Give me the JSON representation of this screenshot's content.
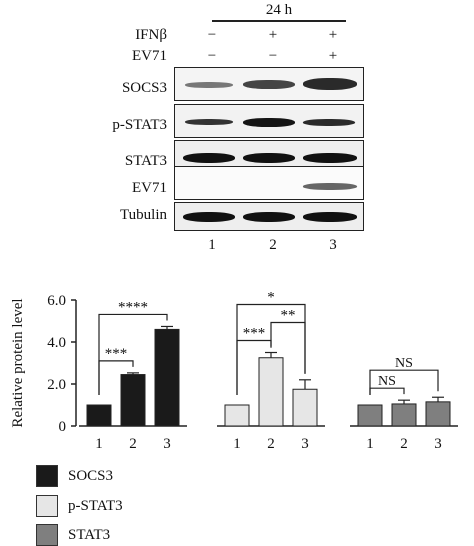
{
  "blot": {
    "time_label": "24 h",
    "treatments": [
      {
        "name": "IFNβ",
        "signs": [
          "−",
          "+",
          "+"
        ]
      },
      {
        "name": "EV71",
        "signs": [
          "−",
          "−",
          "+"
        ]
      }
    ],
    "rows": [
      {
        "label": "SOCS3"
      },
      {
        "label": "p-STAT3"
      },
      {
        "label": "STAT3"
      },
      {
        "label": "EV71"
      },
      {
        "label": "Tubulin"
      }
    ],
    "lanes": [
      "1",
      "2",
      "3"
    ]
  },
  "chart_data": {
    "type": "bar",
    "ylabel": "Relative protein level",
    "ylim": [
      0,
      6
    ],
    "yticks": [
      "0",
      "2.0",
      "4.0",
      "6.0"
    ],
    "groups": [
      {
        "name": "SOCS3",
        "color": "#1a1a1a",
        "categories": [
          "1",
          "2",
          "3"
        ],
        "values": [
          1.0,
          2.45,
          4.6
        ],
        "errors": [
          0.0,
          0.08,
          0.14
        ]
      },
      {
        "name": "p-STAT3",
        "color": "#e6e6e6",
        "categories": [
          "1",
          "2",
          "3"
        ],
        "values": [
          1.0,
          3.25,
          1.75
        ],
        "errors": [
          0.0,
          0.25,
          0.45
        ]
      },
      {
        "name": "STAT3",
        "color": "#7f7f7f",
        "categories": [
          "1",
          "2",
          "3"
        ],
        "values": [
          1.0,
          1.05,
          1.15
        ],
        "errors": [
          0.0,
          0.18,
          0.22
        ]
      }
    ],
    "significance": [
      {
        "group": 0,
        "from": 0,
        "to": 1,
        "label": "***"
      },
      {
        "group": 0,
        "from": 0,
        "to": 2,
        "label": "****"
      },
      {
        "group": 1,
        "from": 0,
        "to": 1,
        "label": "***"
      },
      {
        "group": 1,
        "from": 0,
        "to": 2,
        "label": "*"
      },
      {
        "group": 1,
        "from": 1,
        "to": 2,
        "label": "**"
      },
      {
        "group": 2,
        "from": 0,
        "to": 1,
        "label": "NS"
      },
      {
        "group": 2,
        "from": 0,
        "to": 2,
        "label": "NS"
      }
    ],
    "legend": [
      {
        "label": "SOCS3",
        "color": "#1a1a1a"
      },
      {
        "label": "p-STAT3",
        "color": "#e6e6e6"
      },
      {
        "label": "STAT3",
        "color": "#7f7f7f"
      }
    ]
  }
}
